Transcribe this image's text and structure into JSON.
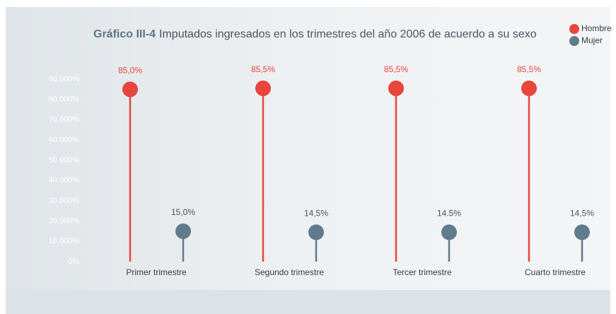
{
  "chart_data": {
    "type": "lollipop",
    "title_number": "Gráfico III-4",
    "title": "Imputados ingresados en los trimestres del año 2006 de acuerdo a su sexo",
    "categories": [
      "Primer trimestre",
      "Segundo trimestre",
      "Tercer trimestre",
      "Cuarto trimestre"
    ],
    "series": [
      {
        "name": "Hombre",
        "color": "#e8453c",
        "values": [
          85.0,
          85.5,
          85.5,
          85.5
        ],
        "value_labels": [
          "85,0%",
          "85,5%",
          "85,5%",
          "85,5%"
        ]
      },
      {
        "name": "Mujer",
        "color": "#607b8b",
        "values": [
          15.0,
          14.5,
          14.5,
          14.5
        ],
        "value_labels": [
          "15,0%",
          "14,5%",
          "14.5%",
          "14,5%"
        ]
      }
    ],
    "ylim": [
      0,
      90
    ],
    "yticks": [
      {
        "value": 0,
        "label": "0%"
      },
      {
        "value": 10,
        "label": "10.000%"
      },
      {
        "value": 20,
        "label": "20.000%"
      },
      {
        "value": 30,
        "label": "30.000%"
      },
      {
        "value": 40,
        "label": "40.000%"
      },
      {
        "value": 50,
        "label": "50.000%"
      },
      {
        "value": 60,
        "label": "60.000%"
      },
      {
        "value": 70,
        "label": "70.000%"
      },
      {
        "value": 80,
        "label": "80.000%"
      },
      {
        "value": 90,
        "label": "90.000%"
      }
    ],
    "grid": false,
    "legend": "top-right"
  }
}
